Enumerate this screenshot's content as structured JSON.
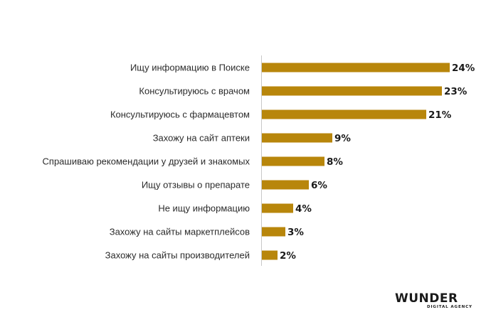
{
  "chart_data": {
    "type": "bar",
    "orientation": "horizontal",
    "categories": [
      "Ищу информацию в Поиске",
      "Консультируюсь с врачом",
      "Консультируюсь с фармацевтом",
      "Захожу на сайт аптеки",
      "Спрашиваю рекомендации у друзей и знакомых",
      "Ищу отзывы о препарате",
      "Не ищу информацию",
      "Захожу на сайты маркетплейсов",
      "Захожу на сайты производителей"
    ],
    "values": [
      24,
      23,
      21,
      9,
      8,
      6,
      4,
      3,
      2
    ],
    "value_labels": [
      "24%",
      "23%",
      "21%",
      "9%",
      "8%",
      "6%",
      "4%",
      "3%",
      "2%"
    ],
    "xlim": [
      0,
      24
    ],
    "grid": false,
    "bar_color": "#b8860b"
  },
  "logo": {
    "main": "WUNDER",
    "sub": "DIGITAL AGENCY"
  }
}
